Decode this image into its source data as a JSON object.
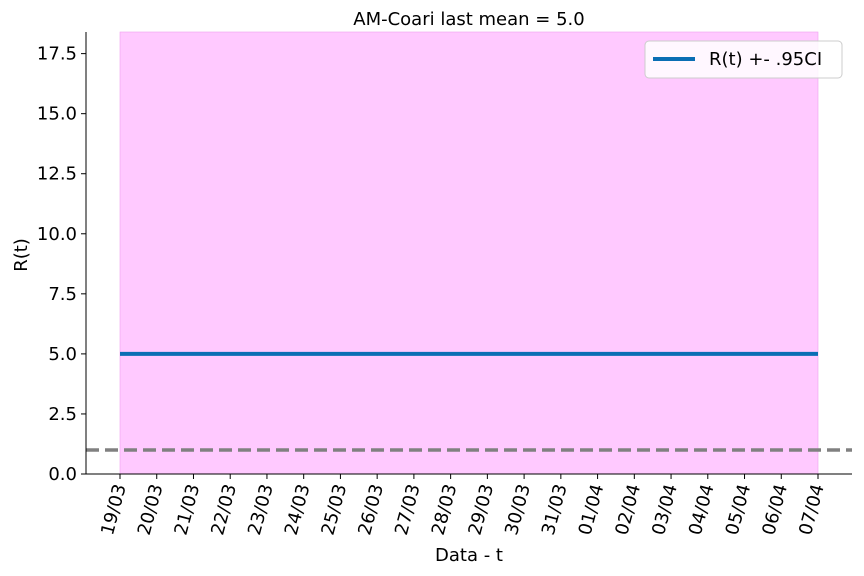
{
  "chart_data": {
    "type": "line",
    "title": "AM-Coari last mean = 5.0",
    "xlabel": "Data - t",
    "ylabel": "R(t)",
    "x": [
      "19/03",
      "20/03",
      "21/03",
      "22/03",
      "23/03",
      "24/03",
      "25/03",
      "26/03",
      "27/03",
      "28/03",
      "29/03",
      "30/03",
      "31/03",
      "01/04",
      "02/04",
      "03/04",
      "04/04",
      "05/04",
      "06/04",
      "07/04"
    ],
    "series": [
      {
        "name": "R(t) +- .95CI",
        "values": [
          5.0,
          5.0,
          5.0,
          5.0,
          5.0,
          5.0,
          5.0,
          5.0,
          5.0,
          5.0,
          5.0,
          5.0,
          5.0,
          5.0,
          5.0,
          5.0,
          5.0,
          5.0,
          5.0,
          5.0
        ],
        "color": "#0a6eb4"
      }
    ],
    "ci_band": {
      "lower": 0,
      "upper": 18.4,
      "color": "#ffc9ff"
    },
    "reference_line": {
      "y": 1.0,
      "color": "#808080",
      "style": "dashed"
    },
    "yticks": [
      "0.0",
      "2.5",
      "5.0",
      "7.5",
      "10.0",
      "12.5",
      "15.0",
      "17.5"
    ],
    "ytick_values": [
      0,
      2.5,
      5.0,
      7.5,
      10.0,
      12.5,
      15.0,
      17.5
    ],
    "ylim": [
      0,
      18.4
    ],
    "legend_position": "top-right",
    "grid": false
  }
}
